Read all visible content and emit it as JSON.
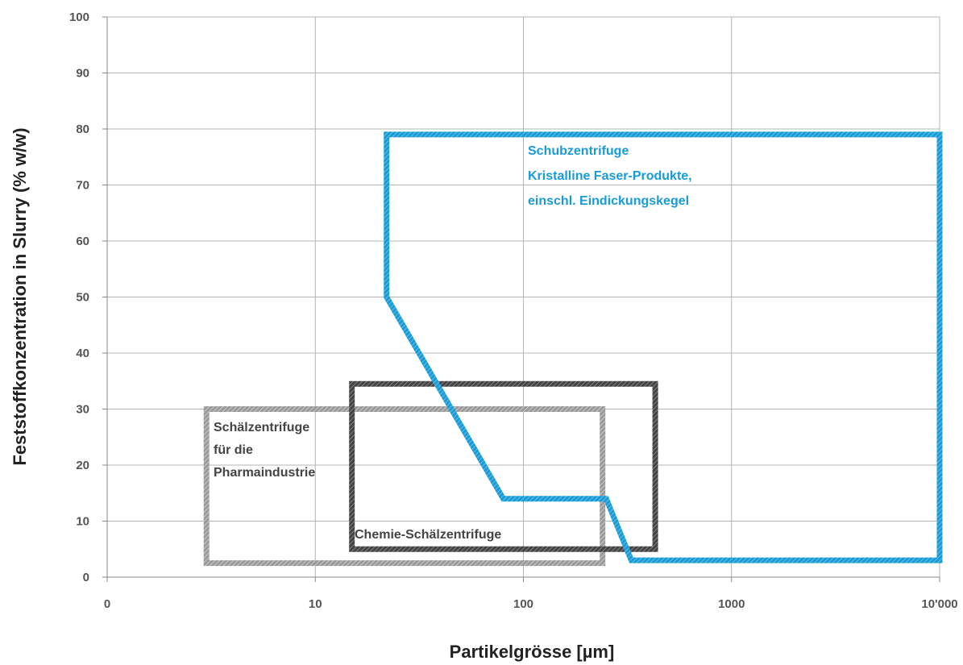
{
  "chart_data": {
    "type": "area",
    "title": "",
    "xlabel": "Partikelgrösse [µm]",
    "ylabel": "Feststoffkonzentration in Slurry (% w/w)",
    "x_scale": "log",
    "x_ticks": [
      {
        "value": 1,
        "label": "0"
      },
      {
        "value": 10,
        "label": "10"
      },
      {
        "value": 100,
        "label": "100"
      },
      {
        "value": 1000,
        "label": "1000"
      },
      {
        "value": 10000,
        "label": "10'000"
      }
    ],
    "ylim": [
      0,
      100
    ],
    "y_ticks": [
      0,
      10,
      20,
      30,
      40,
      50,
      60,
      70,
      80,
      90,
      100
    ],
    "grid": true,
    "regions": [
      {
        "name": "Schubzentrifuge",
        "labels": [
          "Schubzentrifuge",
          "Kristalline Faser-Produkte,",
          "einschl. Eindickungskegel"
        ],
        "color": "#1a9bd6",
        "points": [
          [
            22,
            79
          ],
          [
            10000,
            79
          ],
          [
            10000,
            3
          ],
          [
            330,
            3
          ],
          [
            250,
            14
          ],
          [
            80,
            14
          ],
          [
            22,
            50
          ]
        ]
      },
      {
        "name": "Chemie-Schälzentrifuge",
        "labels": [
          "Chemie-Schälzentrifuge"
        ],
        "color": "#444444",
        "points": [
          [
            15,
            34.5
          ],
          [
            430,
            34.5
          ],
          [
            430,
            5
          ],
          [
            15,
            5
          ]
        ]
      },
      {
        "name": "Schälzentrifuge für die Pharmaindustrie",
        "labels": [
          "Schälzentrifuge",
          "für die",
          "Pharmaindustrie"
        ],
        "color": "#999999",
        "points": [
          [
            3,
            30
          ],
          [
            240,
            30
          ],
          [
            240,
            2.5
          ],
          [
            3,
            2.5
          ]
        ]
      }
    ]
  }
}
